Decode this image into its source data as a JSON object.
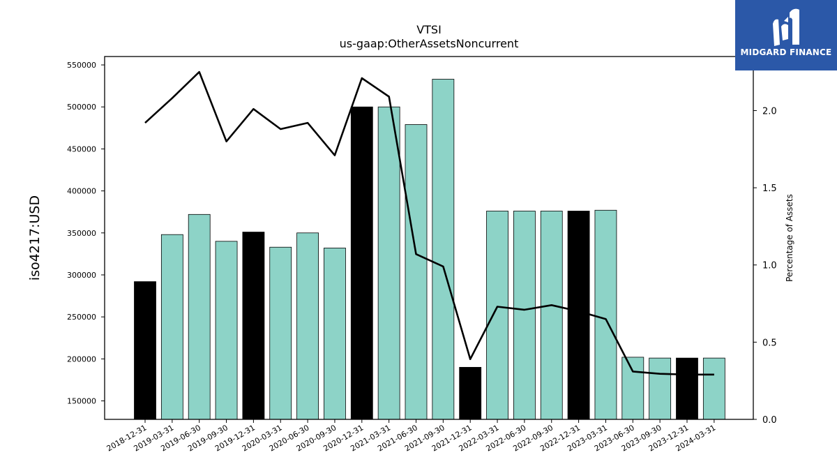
{
  "chart_data": {
    "type": "bar",
    "title": "VTSI",
    "subtitle": "us-gaap:OtherAssetsNoncurrent",
    "ylabel": "iso4217:USD",
    "y2label": "Percentage of Assets",
    "ylim": [
      128000,
      560000
    ],
    "y2lim": [
      0,
      2.35
    ],
    "yticks": [
      150000,
      200000,
      250000,
      300000,
      350000,
      400000,
      450000,
      500000,
      550000
    ],
    "y2ticks": [
      0.0,
      0.5,
      1.0,
      1.5,
      2.0
    ],
    "grid": false,
    "categories": [
      "2018-12-31",
      "2019-03-31",
      "2019-06-30",
      "2019-09-30",
      "2019-12-31",
      "2020-03-31",
      "2020-06-30",
      "2020-09-30",
      "2020-12-31",
      "2021-03-31",
      "2021-06-30",
      "2021-09-30",
      "2021-12-31",
      "2022-03-31",
      "2022-06-30",
      "2022-09-30",
      "2022-12-31",
      "2023-03-31",
      "2023-06-30",
      "2023-09-30",
      "2023-12-31",
      "2024-03-31"
    ],
    "values": [
      292000,
      348000,
      372000,
      340000,
      351000,
      333000,
      350000,
      332000,
      500000,
      500000,
      479000,
      533000,
      190000,
      376000,
      376000,
      376000,
      376000,
      377000,
      202000,
      201000,
      201000,
      201000
    ],
    "annual": [
      true,
      false,
      false,
      false,
      true,
      false,
      false,
      false,
      true,
      false,
      false,
      false,
      true,
      false,
      false,
      false,
      true,
      false,
      false,
      false,
      true,
      false
    ],
    "line_values": [
      1.92,
      2.08,
      2.25,
      1.8,
      2.01,
      1.88,
      1.92,
      1.71,
      2.21,
      2.09,
      1.07,
      0.99,
      0.39,
      0.73,
      0.71,
      0.74,
      0.7,
      0.65,
      0.31,
      0.295,
      0.29,
      0.29
    ],
    "colors": {
      "annual": "#000000",
      "quarterly": "#8dd3c7",
      "line": "#000000"
    }
  },
  "logo": {
    "text": "MIDGARD FINANCE",
    "bg": "#2b58a8"
  }
}
